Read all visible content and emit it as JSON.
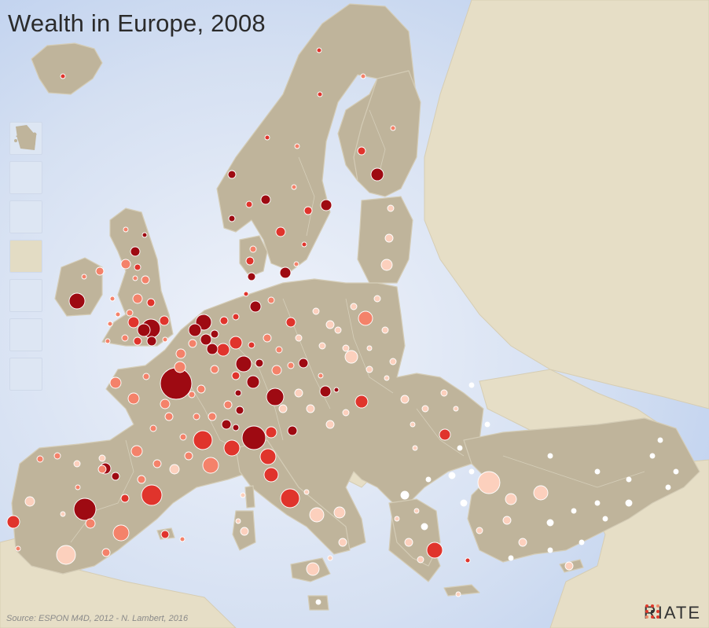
{
  "title": "Wealth in Europe, 2008",
  "source": "Source: ESPON M4D, 2012 - N. Lambert, 2016",
  "logo": {
    "text": "RIATE"
  },
  "colors": {
    "sea": "#c9d8f0",
    "sea_light": "#e9eef8",
    "land_other": "#e6dec6",
    "land_study": "#bfb49b",
    "border": "#d8d0bc",
    "symbol_very_low": "#ffffff",
    "symbol_low": "#fcd0bd",
    "symbol_mid": "#f4826a",
    "symbol_high": "#e0342c",
    "symbol_very_high": "#9e0a12"
  },
  "legend_classes": [
    "very_low",
    "low",
    "mid",
    "high",
    "very_high"
  ],
  "insets": [
    {
      "name": "inset-azores",
      "icon": "island-icon"
    },
    {
      "name": "inset-madeira",
      "icon": "island-icon"
    },
    {
      "name": "inset-reunion",
      "icon": "island-icon"
    },
    {
      "name": "inset-guyane",
      "icon": "island-icon"
    },
    {
      "name": "inset-canarias",
      "icon": "island-icon"
    },
    {
      "name": "inset-guadeloupe",
      "icon": "island-icon"
    },
    {
      "name": "inset-martinique",
      "icon": "island-icon"
    }
  ]
}
